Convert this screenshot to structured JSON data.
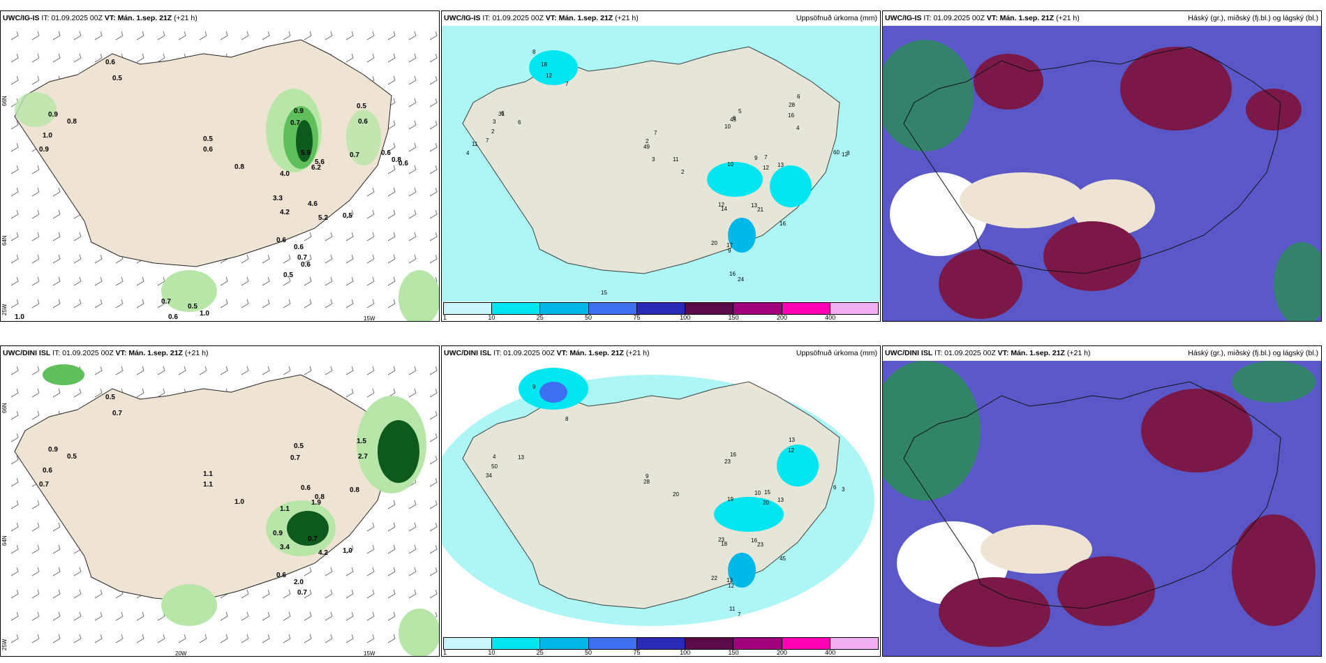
{
  "panels": [
    {
      "model": "UWC/IG-IS",
      "it_prefix": "IT:",
      "it_value": "01.09.2025 00Z",
      "vt_prefix": "VT:",
      "vt_value": "Mán. 1.sep. 21Z",
      "lead": "(+21 h)",
      "subtitle": "",
      "axis_labels": [
        "66N",
        "64N",
        "15W",
        "25W",
        "66N",
        "64N"
      ],
      "values": [
        "0.6",
        "0.5",
        "0.8",
        "1.0",
        "0.9",
        "0.9",
        "0.5",
        "0.6",
        "0.8",
        "0.9",
        "0.7",
        "0.5",
        "0.6",
        "0.7",
        "5.9",
        "6.2",
        "5.6",
        "4.0",
        "3.3",
        "4.6",
        "4.2",
        "5.2",
        "0.5",
        "0.6",
        "0.6",
        "0.7",
        "0.6",
        "0.5",
        "0.6",
        "0.8",
        "0.6",
        "0.5",
        "1.0",
        "0.6",
        "0.7",
        "1.0"
      ]
    },
    {
      "model": "UWC/IG-IS",
      "it_prefix": "IT:",
      "it_value": "01.09.2025 00Z",
      "vt_prefix": "VT:",
      "vt_value": "Mán. 1.sep. 21Z",
      "lead": "(+21 h)",
      "subtitle": "Uppsöfnuð úrkoma (mm)",
      "values": [
        "8",
        "7",
        "6",
        "2",
        "7",
        "3",
        "2",
        "49",
        "11",
        "45",
        "10",
        "28",
        "16",
        "13",
        "9",
        "12",
        "7",
        "10",
        "12",
        "13",
        "14",
        "21",
        "16",
        "20",
        "17",
        "9",
        "16",
        "24",
        "60",
        "12",
        "3",
        "4",
        "7",
        "9",
        "15",
        "25",
        "18",
        "12",
        "31",
        "11",
        "4",
        "6",
        "7",
        "3",
        "2",
        "5",
        "9",
        "6",
        "4"
      ]
    },
    {
      "model": "UWC/IG-IS",
      "it_prefix": "IT:",
      "it_value": "01.09.2025 00Z",
      "vt_prefix": "VT:",
      "vt_value": "Mán. 1.sep. 21Z",
      "lead": "(+21 h)",
      "subtitle": "Háský (gr.), miðský (fj.bl.) og lágský (bl.)"
    },
    {
      "model": "UWC/DINI ISL",
      "it_prefix": "IT:",
      "it_value": "01.09.2025 00Z",
      "vt_prefix": "VT:",
      "vt_value": "Mán. 1.sep. 21Z",
      "lead": "(+21 h)",
      "subtitle": "",
      "axis_labels": [
        "66N",
        "64N",
        "15W",
        "20W",
        "25W",
        "64N"
      ],
      "values": [
        "0.5",
        "0.7",
        "0.5",
        "0.6",
        "0.7",
        "0.9",
        "1.1",
        "1.1",
        "1.0",
        "0.5",
        "0.7",
        "1.5",
        "2.7",
        "0.8",
        "0.6",
        "1.9",
        "0.8",
        "1.1",
        "0.9",
        "0.7",
        "3.4",
        "4.2",
        "1.0",
        "0.6",
        "2.0",
        "0.7"
      ]
    },
    {
      "model": "UWC/DINI ISL",
      "it_prefix": "IT:",
      "it_value": "01.09.2025 00Z",
      "vt_prefix": "VT:",
      "vt_value": "Mán. 1.sep. 21Z",
      "lead": "(+21 h)",
      "subtitle": "Uppsöfnuð úrkoma (mm)",
      "values": [
        "9",
        "8",
        "13",
        "50",
        "34",
        "4",
        "9",
        "28",
        "20",
        "16",
        "23",
        "13",
        "12",
        "13",
        "10",
        "20",
        "15",
        "19",
        "23",
        "16",
        "18",
        "23",
        "45",
        "22",
        "13",
        "12",
        "11",
        "7",
        "6",
        "3"
      ]
    },
    {
      "model": "UWC/DINI ISL",
      "it_prefix": "IT:",
      "it_value": "01.09.2025 00Z",
      "vt_prefix": "VT:",
      "vt_value": "Mán. 1.sep. 21Z",
      "lead": "(+21 h)",
      "subtitle": "Háský (gr.), miðský (fj.bl.) og lágský (bl.)"
    }
  ],
  "colorbar": {
    "labels": [
      "1",
      "10",
      "25",
      "50",
      "75",
      "100",
      "150",
      "200",
      "400"
    ],
    "colors": [
      "#c8f6fb",
      "#00e6f0",
      "#00b8e8",
      "#3d6ff0",
      "#2a2ab4",
      "#5a0a46",
      "#a0007a",
      "#ff00b4",
      "#f0b0f0"
    ]
  },
  "colors": {
    "land": "#efe3d3",
    "sea_precip_bg": "#aef6f6",
    "green_light": "#b8e6a8",
    "green_mid": "#5fbf5a",
    "green_dark": "#0e5a1e",
    "cloud_blue": "#5a58c8",
    "cloud_maroon": "#7a1848",
    "cloud_green": "#2d8a5c"
  }
}
